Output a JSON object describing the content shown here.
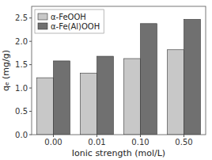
{
  "chart_data": {
    "type": "bar",
    "categories": [
      "0.00",
      "0.01",
      "0.10",
      "0.50"
    ],
    "series": [
      {
        "name": "α-FeOOH",
        "color": "#c8c8c8",
        "values": [
          1.22,
          1.32,
          1.63,
          1.82
        ]
      },
      {
        "name": "α-Fe(Al)OOH",
        "color": "#707070",
        "values": [
          1.58,
          1.68,
          2.38,
          2.47
        ]
      }
    ],
    "xlabel": "Ionic strength (mol/L)",
    "ylabel": "qₑ (mg/g)",
    "ylim": [
      0.0,
      2.75
    ],
    "yticks": [
      {
        "value": 0.0,
        "label": "0.0"
      },
      0.5,
      {
        "value": 1.0,
        "label": "1.0"
      },
      1.5,
      {
        "value": 2.0,
        "label": "2.0"
      },
      2.5
    ],
    "legend": "upper left",
    "grid": false
  }
}
